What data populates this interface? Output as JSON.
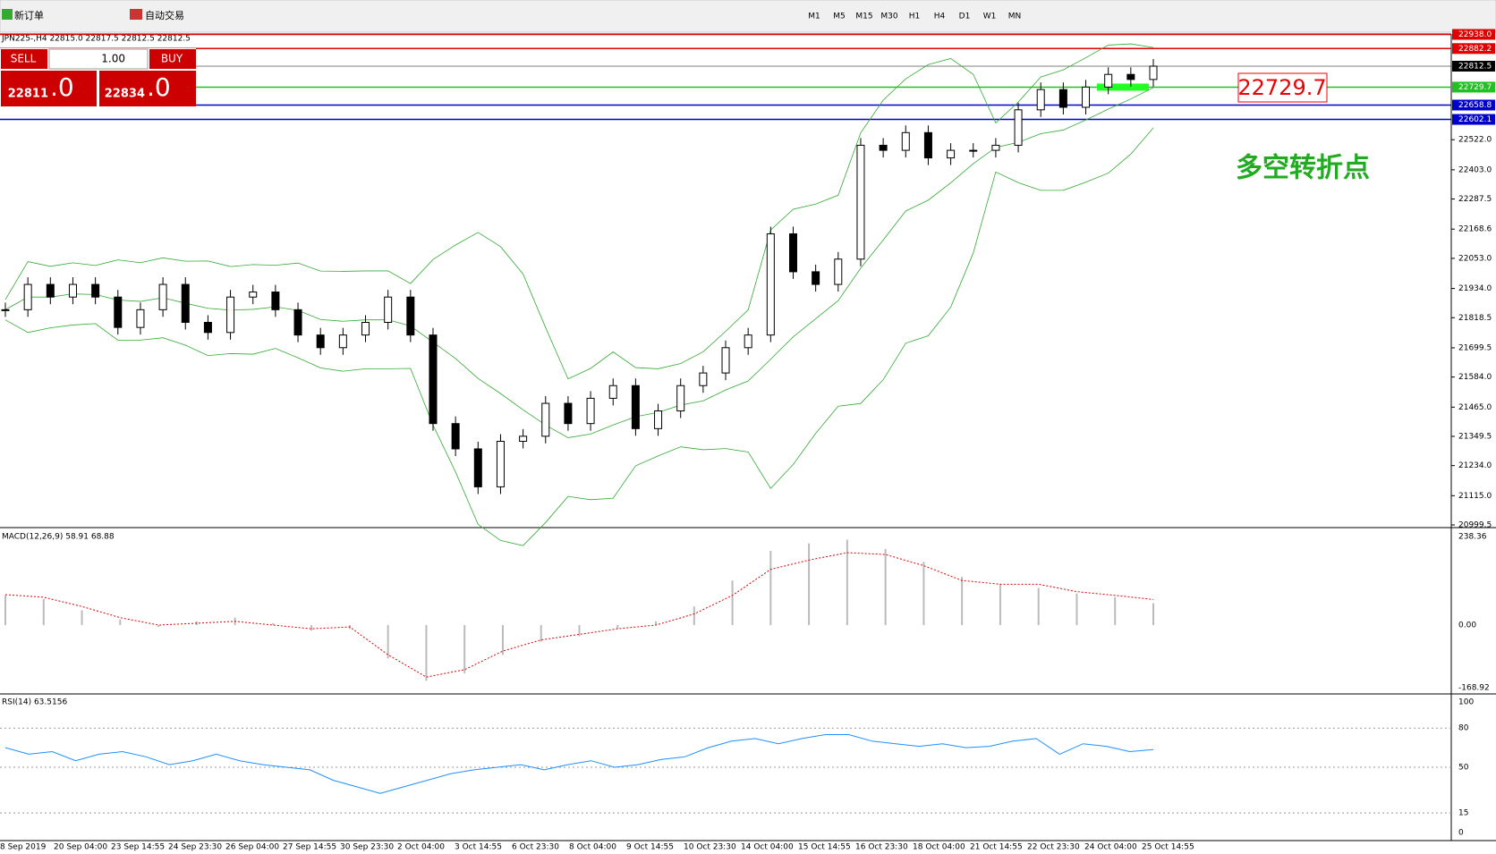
{
  "toolbar": {
    "new_order": "新订单",
    "auto_trading": "自动交易",
    "timeframes": [
      "M1",
      "M5",
      "M15",
      "M30",
      "H1",
      "H4",
      "D1",
      "W1",
      "MN"
    ]
  },
  "chart": {
    "header": "JPN225-,H4  22815.0 22817.5 22812.5 22812.5",
    "trade_panel": {
      "sell": "SELL",
      "buy": "BUY",
      "lots": "1.00",
      "bid_main": "22811",
      "bid_frac": ".0",
      "ask_main": "22834",
      "ask_frac": ".0"
    },
    "price_ticks": [
      {
        "value": 22522,
        "label": "22522.0"
      },
      {
        "value": 22403,
        "label": "22403.0"
      },
      {
        "value": 22287.5,
        "label": "22287.5"
      },
      {
        "value": 22168.6,
        "label": "22168.6"
      },
      {
        "value": 22053,
        "label": "22053.0"
      },
      {
        "value": 21934,
        "label": "21934.0"
      },
      {
        "value": 21818.5,
        "label": "21818.5"
      },
      {
        "value": 21699.5,
        "label": "21699.5"
      },
      {
        "value": 21584,
        "label": "21584.0"
      },
      {
        "value": 21465,
        "label": "21465.0"
      },
      {
        "value": 21349.5,
        "label": "21349.5"
      },
      {
        "value": 21234,
        "label": "21234.0"
      },
      {
        "value": 21115,
        "label": "21115.0"
      },
      {
        "value": 20999.5,
        "label": "20999.5"
      }
    ],
    "price_range": [
      20999.5,
      22938
    ],
    "levels": [
      {
        "value": 22938,
        "label": "22938.0",
        "color": "#e00000"
      },
      {
        "value": 22882.2,
        "label": "22882.2",
        "color": "#e00000"
      },
      {
        "value": 22812.5,
        "label": "22812.5",
        "color": "#000000"
      },
      {
        "value": 22729.7,
        "label": "22729.7",
        "color": "#22c022"
      },
      {
        "value": 22658.8,
        "label": "22658.8",
        "color": "#0000cc"
      },
      {
        "value": 22602.1,
        "label": "22602.1",
        "color": "#0000cc"
      }
    ],
    "level_annotation": "22729.7",
    "annotation": "多空转折点",
    "closes": [
      21850,
      21950,
      21900,
      21950,
      21900,
      21780,
      21850,
      21950,
      21800,
      21760,
      21900,
      21920,
      21850,
      21750,
      21700,
      21750,
      21800,
      21900,
      21750,
      21400,
      21300,
      21150,
      21330,
      21350,
      21480,
      21400,
      21500,
      21550,
      21380,
      21450,
      21550,
      21600,
      21700,
      21750,
      22150,
      22000,
      21950,
      22050,
      22500,
      22480,
      22550,
      22450,
      22480,
      22480,
      22500,
      22640,
      22720,
      22650,
      22730,
      22780,
      22760,
      22812.5
    ],
    "macd": {
      "label": "MACD(12,26,9) 58.91 68.88",
      "ticks": [
        {
          "value": 238.36,
          "label": "238.36"
        },
        {
          "value": 0,
          "label": "0.00"
        },
        {
          "value": -168.92,
          "label": "-168.92"
        }
      ],
      "main": [
        80,
        70,
        40,
        15,
        -5,
        10,
        20,
        5,
        -15,
        -10,
        -90,
        -150,
        -130,
        -80,
        -45,
        -30,
        -10,
        10,
        50,
        120,
        200,
        220,
        230,
        205,
        170,
        130,
        110,
        100,
        85,
        75,
        58.91
      ],
      "signal": [
        82,
        75,
        50,
        20,
        0,
        5,
        10,
        0,
        -10,
        -5,
        -80,
        -140,
        -120,
        -70,
        -40,
        -25,
        -10,
        0,
        30,
        80,
        150,
        175,
        195,
        190,
        160,
        120,
        110,
        110,
        90,
        80,
        68.88
      ]
    },
    "rsi": {
      "label": "RSI(14) 63.5156",
      "ticks": [
        100,
        80,
        50,
        15,
        0
      ],
      "values": [
        65,
        60,
        62,
        55,
        60,
        62,
        58,
        52,
        55,
        60,
        55,
        52,
        50,
        48,
        40,
        35,
        30,
        35,
        40,
        45,
        48,
        50,
        52,
        48,
        52,
        55,
        50,
        52,
        56,
        58,
        65,
        70,
        72,
        68,
        72,
        75,
        75,
        70,
        68,
        66,
        68,
        65,
        66,
        70,
        72,
        60,
        68,
        66,
        62,
        63.5156
      ]
    },
    "time_labels": [
      "8 Sep 2019",
      "20 Sep 04:00",
      "23 Sep 14:55",
      "24 Sep 23:30",
      "26 Sep 04:00",
      "27 Sep 14:55",
      "30 Sep 23:30",
      "2 Oct 04:00",
      "3 Oct 14:55",
      "6 Oct 23:30",
      "8 Oct 04:00",
      "9 Oct 14:55",
      "10 Oct 23:30",
      "14 Oct 04:00",
      "15 Oct 14:55",
      "16 Oct 23:30",
      "18 Oct 04:00",
      "21 Oct 14:55",
      "22 Oct 23:30",
      "24 Oct 04:00",
      "25 Oct 14:55"
    ]
  }
}
